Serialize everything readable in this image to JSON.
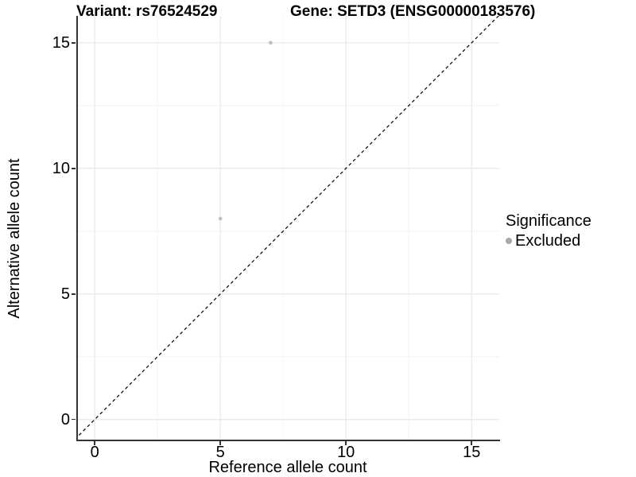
{
  "titles": {
    "variant": "Variant: rs76524529",
    "gene": "Gene: SETD3 (ENSG00000183576)"
  },
  "chart_data": {
    "type": "scatter",
    "title_left": "Variant: rs76524529",
    "title_right": "Gene: SETD3 (ENSG00000183576)",
    "xlabel": "Reference allele count",
    "ylabel": "Alternative allele count",
    "xlim": [
      -0.7,
      16.1
    ],
    "ylim": [
      -0.8,
      16.07
    ],
    "xticks": [
      0,
      5,
      10,
      15
    ],
    "yticks": [
      0,
      5,
      10,
      15
    ],
    "x_minor_ticks": [
      2.5,
      7.5,
      12.5
    ],
    "y_minor_ticks": [
      2.5,
      7.5,
      12.5
    ],
    "grid": {
      "major_color": "#e7e7e7",
      "minor_color": "#f4f4f4",
      "on": true
    },
    "identity_line": {
      "slope": 1,
      "intercept": 0,
      "style": "dashed",
      "color": "#000000"
    },
    "series": [
      {
        "name": "Excluded",
        "color": "#bebebe",
        "point_radius": 2.3,
        "points": [
          {
            "x": 7,
            "y": 15
          },
          {
            "x": 5,
            "y": 8
          }
        ]
      }
    ],
    "legend": {
      "title": "Significance",
      "position": "right",
      "entries": [
        {
          "label": "Excluded",
          "color": "#a8a8a8"
        }
      ]
    }
  }
}
